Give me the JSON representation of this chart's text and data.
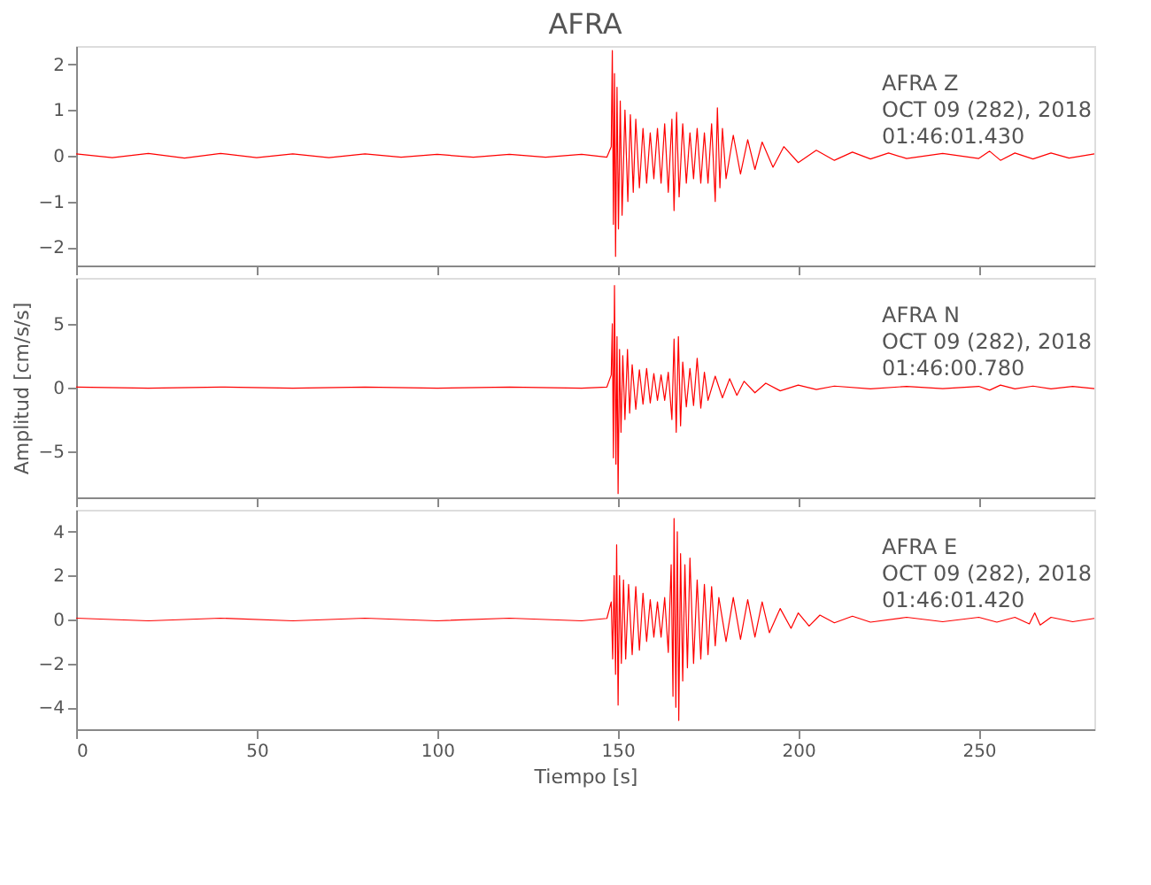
{
  "chart_data": [
    {
      "type": "line",
      "title": "AFRA",
      "xlim": [
        0,
        282
      ],
      "xticks": [
        0,
        50,
        100,
        150,
        200,
        250
      ],
      "ylim": [
        -2.4,
        2.4
      ],
      "yticks": [
        -2,
        -1,
        0,
        1,
        2
      ],
      "tick_labels": "y",
      "grid": false,
      "annotations": [
        "AFRA   Z",
        "OCT 09 (282), 2018",
        "01:46:01.430"
      ],
      "series": [
        {
          "color": "#ff0000",
          "x": [
            0,
            10,
            20,
            30,
            40,
            50,
            60,
            70,
            80,
            90,
            100,
            110,
            120,
            130,
            140,
            147,
            148.2,
            148.5,
            148.8,
            149.1,
            149.4,
            149.8,
            150.2,
            150.7,
            151.2,
            152,
            152.8,
            153.5,
            154.3,
            155,
            156,
            157,
            158,
            159,
            160,
            161,
            162,
            163,
            164,
            165,
            165.6,
            166.3,
            167,
            168,
            169,
            170,
            171,
            172,
            173,
            174,
            175,
            176,
            177,
            177.6,
            178.3,
            179,
            180,
            182,
            184,
            186,
            188,
            190,
            193,
            196,
            200,
            205,
            210,
            215,
            220,
            225,
            230,
            240,
            250,
            253,
            256,
            260,
            265,
            270,
            275,
            282
          ],
          "values": [
            0.04,
            -0.04,
            0.05,
            -0.05,
            0.05,
            -0.04,
            0.04,
            -0.04,
            0.04,
            -0.03,
            0.03,
            -0.03,
            0.03,
            -0.03,
            0.03,
            -0.03,
            0.2,
            2.3,
            -1.5,
            1.8,
            -2.2,
            1.5,
            -1.6,
            1.2,
            -1.3,
            1.0,
            -1.0,
            0.9,
            -0.8,
            0.8,
            -0.7,
            0.6,
            -0.6,
            0.5,
            -0.5,
            0.6,
            -0.6,
            0.7,
            -0.8,
            0.8,
            -1.2,
            0.95,
            -0.9,
            0.7,
            -0.6,
            0.5,
            -0.5,
            0.6,
            -0.6,
            0.5,
            -0.6,
            0.7,
            -1.0,
            1.05,
            -0.7,
            0.6,
            -0.5,
            0.45,
            -0.4,
            0.35,
            -0.3,
            0.3,
            -0.25,
            0.2,
            -0.15,
            0.12,
            -0.1,
            0.08,
            -0.07,
            0.06,
            -0.06,
            0.05,
            -0.06,
            0.1,
            -0.1,
            0.06,
            -0.07,
            0.06,
            -0.05,
            0.04
          ]
        }
      ]
    },
    {
      "type": "line",
      "ylabel": "Amplitud [cm/s/s]",
      "xlim": [
        0,
        282
      ],
      "xticks": [
        0,
        50,
        100,
        150,
        200,
        250
      ],
      "ylim": [
        -8.6,
        8.6
      ],
      "yticks": [
        -5,
        0,
        5
      ],
      "tick_labels": "y",
      "grid": false,
      "annotations": [
        "AFRA   N",
        "OCT 09 (282), 2018",
        "01:46:00.780"
      ],
      "series": [
        {
          "color": "#ff0000",
          "x": [
            0,
            20,
            40,
            60,
            80,
            100,
            120,
            140,
            147,
            148.2,
            148.5,
            148.8,
            149.1,
            149.5,
            149.8,
            150.1,
            150.5,
            150.9,
            151.4,
            152,
            152.7,
            153.3,
            154,
            155,
            156,
            157,
            158,
            159,
            160,
            161,
            162,
            163,
            164,
            165,
            165.6,
            166.2,
            166.8,
            167.4,
            168,
            169,
            170,
            171,
            172,
            173,
            174,
            175,
            177,
            179,
            181,
            183,
            185,
            188,
            191,
            195,
            200,
            205,
            210,
            220,
            230,
            240,
            250,
            253,
            256,
            260,
            265,
            270,
            276,
            282
          ],
          "values": [
            0.05,
            -0.05,
            0.05,
            -0.05,
            0.05,
            -0.05,
            0.05,
            -0.05,
            0.05,
            1,
            5,
            -5.5,
            8.0,
            -6,
            4,
            -8.3,
            3,
            -3.5,
            2.5,
            -2.5,
            3.0,
            -2,
            1.8,
            -1.7,
            1.4,
            -1.3,
            1.5,
            -1.2,
            1.1,
            -1.0,
            1.0,
            -1.0,
            1.2,
            -2.5,
            3.8,
            -3.5,
            4.0,
            -3.0,
            2.0,
            -1.5,
            1.5,
            -1.4,
            2.3,
            -1.6,
            1.2,
            -1.0,
            0.9,
            -0.8,
            0.7,
            -0.6,
            0.5,
            -0.4,
            0.35,
            -0.25,
            0.2,
            -0.15,
            0.12,
            -0.1,
            0.1,
            -0.08,
            0.1,
            -0.2,
            0.2,
            -0.1,
            0.12,
            -0.1,
            0.1,
            -0.08
          ]
        }
      ]
    },
    {
      "type": "line",
      "xlabel": "Tiempo [s]",
      "xlim": [
        0,
        282
      ],
      "xticks": [
        0,
        50,
        100,
        150,
        200,
        250
      ],
      "ylim": [
        -5,
        5
      ],
      "yticks": [
        -4,
        -2,
        0,
        2,
        4
      ],
      "grid": false,
      "annotations": [
        "AFRA   E",
        "OCT 09 (282), 2018",
        "01:46:01.420"
      ],
      "series": [
        {
          "color": "#ff0000",
          "x": [
            0,
            20,
            40,
            60,
            80,
            100,
            120,
            140,
            147,
            148.2,
            148.6,
            149,
            149.4,
            149.7,
            150.1,
            150.5,
            151,
            151.6,
            152.2,
            153,
            154,
            155,
            156,
            157,
            158,
            159,
            160,
            161,
            162,
            163,
            164,
            164.8,
            165.3,
            165.6,
            166.1,
            166.5,
            166.9,
            167.4,
            168,
            168.6,
            169.3,
            170,
            171,
            172,
            173,
            174,
            175,
            176,
            177,
            178,
            180,
            182,
            184,
            186,
            188,
            190,
            192,
            195,
            198,
            200,
            203,
            206,
            210,
            215,
            220,
            230,
            240,
            250,
            255,
            260,
            264,
            265.5,
            267,
            270,
            276,
            282
          ],
          "values": [
            0.06,
            -0.06,
            0.06,
            -0.06,
            0.06,
            -0.06,
            0.06,
            -0.06,
            0.05,
            0.8,
            -1.8,
            2.0,
            -2.5,
            3.4,
            -3.9,
            2.0,
            -2.0,
            1.8,
            -1.8,
            1.6,
            -1.6,
            1.5,
            -1.4,
            1.2,
            -1.0,
            0.9,
            -0.8,
            0.8,
            -0.8,
            1.0,
            -1.5,
            2.5,
            -3.5,
            4.6,
            -4.0,
            4.0,
            -4.6,
            3.0,
            -2.8,
            2.5,
            -2.2,
            2.8,
            -2.0,
            1.8,
            -1.8,
            1.6,
            -1.6,
            1.5,
            -1.2,
            1.0,
            -1.0,
            1.0,
            -0.9,
            0.9,
            -0.8,
            0.8,
            -0.6,
            0.5,
            -0.4,
            0.3,
            -0.3,
            0.2,
            -0.15,
            0.15,
            -0.12,
            0.1,
            -0.1,
            0.1,
            -0.12,
            0.1,
            -0.2,
            0.3,
            -0.25,
            0.1,
            -0.1,
            0.05
          ]
        }
      ]
    }
  ]
}
